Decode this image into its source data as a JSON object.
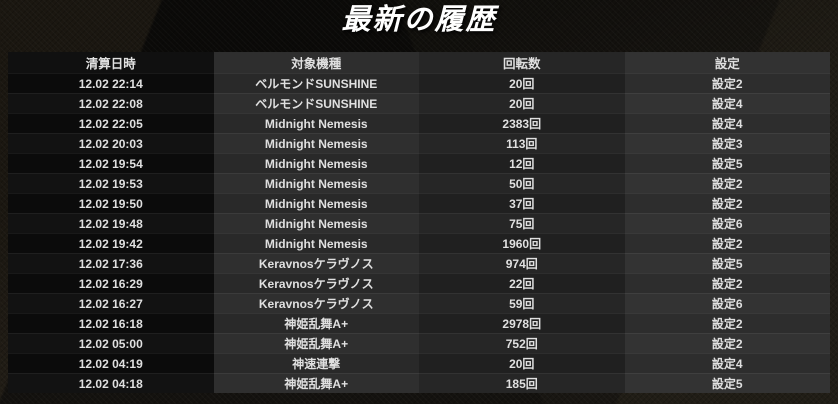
{
  "title": "最新の履歴",
  "table": {
    "columns": [
      "清算日時",
      "対象機種",
      "回転数",
      "設定"
    ],
    "rows": [
      [
        "12.02 22:14",
        "ベルモンドSUNSHINE",
        "20回",
        "設定2"
      ],
      [
        "12.02 22:08",
        "ベルモンドSUNSHINE",
        "20回",
        "設定4"
      ],
      [
        "12.02 22:05",
        "Midnight Nemesis",
        "2383回",
        "設定4"
      ],
      [
        "12.02 20:03",
        "Midnight Nemesis",
        "113回",
        "設定3"
      ],
      [
        "12.02 19:54",
        "Midnight Nemesis",
        "12回",
        "設定5"
      ],
      [
        "12.02 19:53",
        "Midnight Nemesis",
        "50回",
        "設定2"
      ],
      [
        "12.02 19:50",
        "Midnight Nemesis",
        "37回",
        "設定2"
      ],
      [
        "12.02 19:48",
        "Midnight Nemesis",
        "75回",
        "設定6"
      ],
      [
        "12.02 19:42",
        "Midnight Nemesis",
        "1960回",
        "設定2"
      ],
      [
        "12.02 17:36",
        "Keravnosケラヴノス",
        "974回",
        "設定5"
      ],
      [
        "12.02 16:29",
        "Keravnosケラヴノス",
        "22回",
        "設定2"
      ],
      [
        "12.02 16:27",
        "Keravnosケラヴノス",
        "59回",
        "設定6"
      ],
      [
        "12.02 16:18",
        "神姫乱舞A+",
        "2978回",
        "設定2"
      ],
      [
        "12.02 05:00",
        "神姫乱舞A+",
        "752回",
        "設定2"
      ],
      [
        "12.02 04:19",
        "神速連撃",
        "20回",
        "設定4"
      ],
      [
        "12.02 04:18",
        "神姫乱舞A+",
        "185回",
        "設定5"
      ]
    ]
  },
  "colors": {
    "page_bg": "#14120f",
    "title_text": "#ffffff",
    "cell_text": "#e0e0e0",
    "header_col1_bg": "#101010",
    "header_col2_bg": "#2e2e2e",
    "header_col3_bg": "#262626",
    "header_col4_bg": "#323232",
    "col1_bg": "#0b0b0b",
    "col2_bg": "#292929",
    "col3_bg": "#202020",
    "col4_bg": "#2d2d2d",
    "row_divider": "rgba(255,255,255,0.06)"
  }
}
